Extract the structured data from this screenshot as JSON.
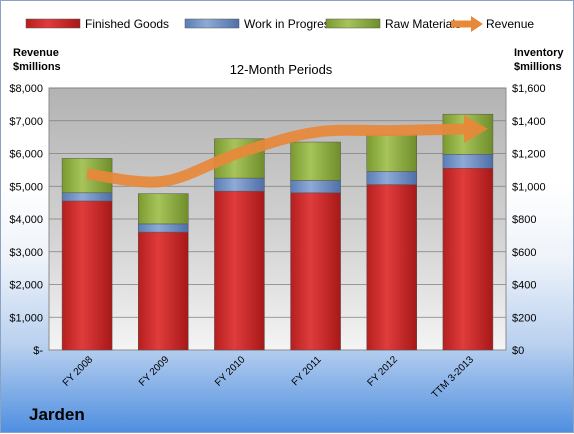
{
  "company": "Jarden",
  "colors": {
    "finished_goods": "#cf2a2a",
    "work_in_progress": "#6d8fc4",
    "raw_materials": "#8fb040",
    "revenue": "#e8883a"
  },
  "chart_data": {
    "type": "bar",
    "stacked": true,
    "title": "12-Month Periods",
    "categories": [
      "FY 2008",
      "FY 2009",
      "FY 2010",
      "FY 2011",
      "FY 2012",
      "TTM 3-2013"
    ],
    "series": [
      {
        "name": "Finished Goods",
        "axis": "right",
        "values": [
          910,
          720,
          970,
          960,
          1010,
          1110
        ]
      },
      {
        "name": "Work in Progress",
        "axis": "right",
        "values": [
          50,
          50,
          80,
          75,
          80,
          85
        ]
      },
      {
        "name": "Raw Materials",
        "axis": "right",
        "values": [
          210,
          185,
          240,
          235,
          225,
          245
        ]
      },
      {
        "name": "Revenue",
        "type": "line",
        "axis": "left",
        "values": [
          5380,
          5150,
          6020,
          6650,
          6700,
          6750
        ]
      }
    ],
    "left_axis": {
      "label": [
        "Revenue",
        "$millions"
      ],
      "min": 0,
      "max": 8000,
      "ticks": [
        "$-",
        "$1,000",
        "$2,000",
        "$3,000",
        "$4,000",
        "$5,000",
        "$6,000",
        "$7,000",
        "$8,000"
      ]
    },
    "right_axis": {
      "label": [
        "Inventory",
        "$millions"
      ],
      "min": 0,
      "max": 1600,
      "ticks": [
        "$0",
        "$200",
        "$400",
        "$600",
        "$800",
        "$1,000",
        "$1,200",
        "$1,400",
        "$1,600"
      ]
    },
    "legend_position": "top",
    "grid": true
  }
}
